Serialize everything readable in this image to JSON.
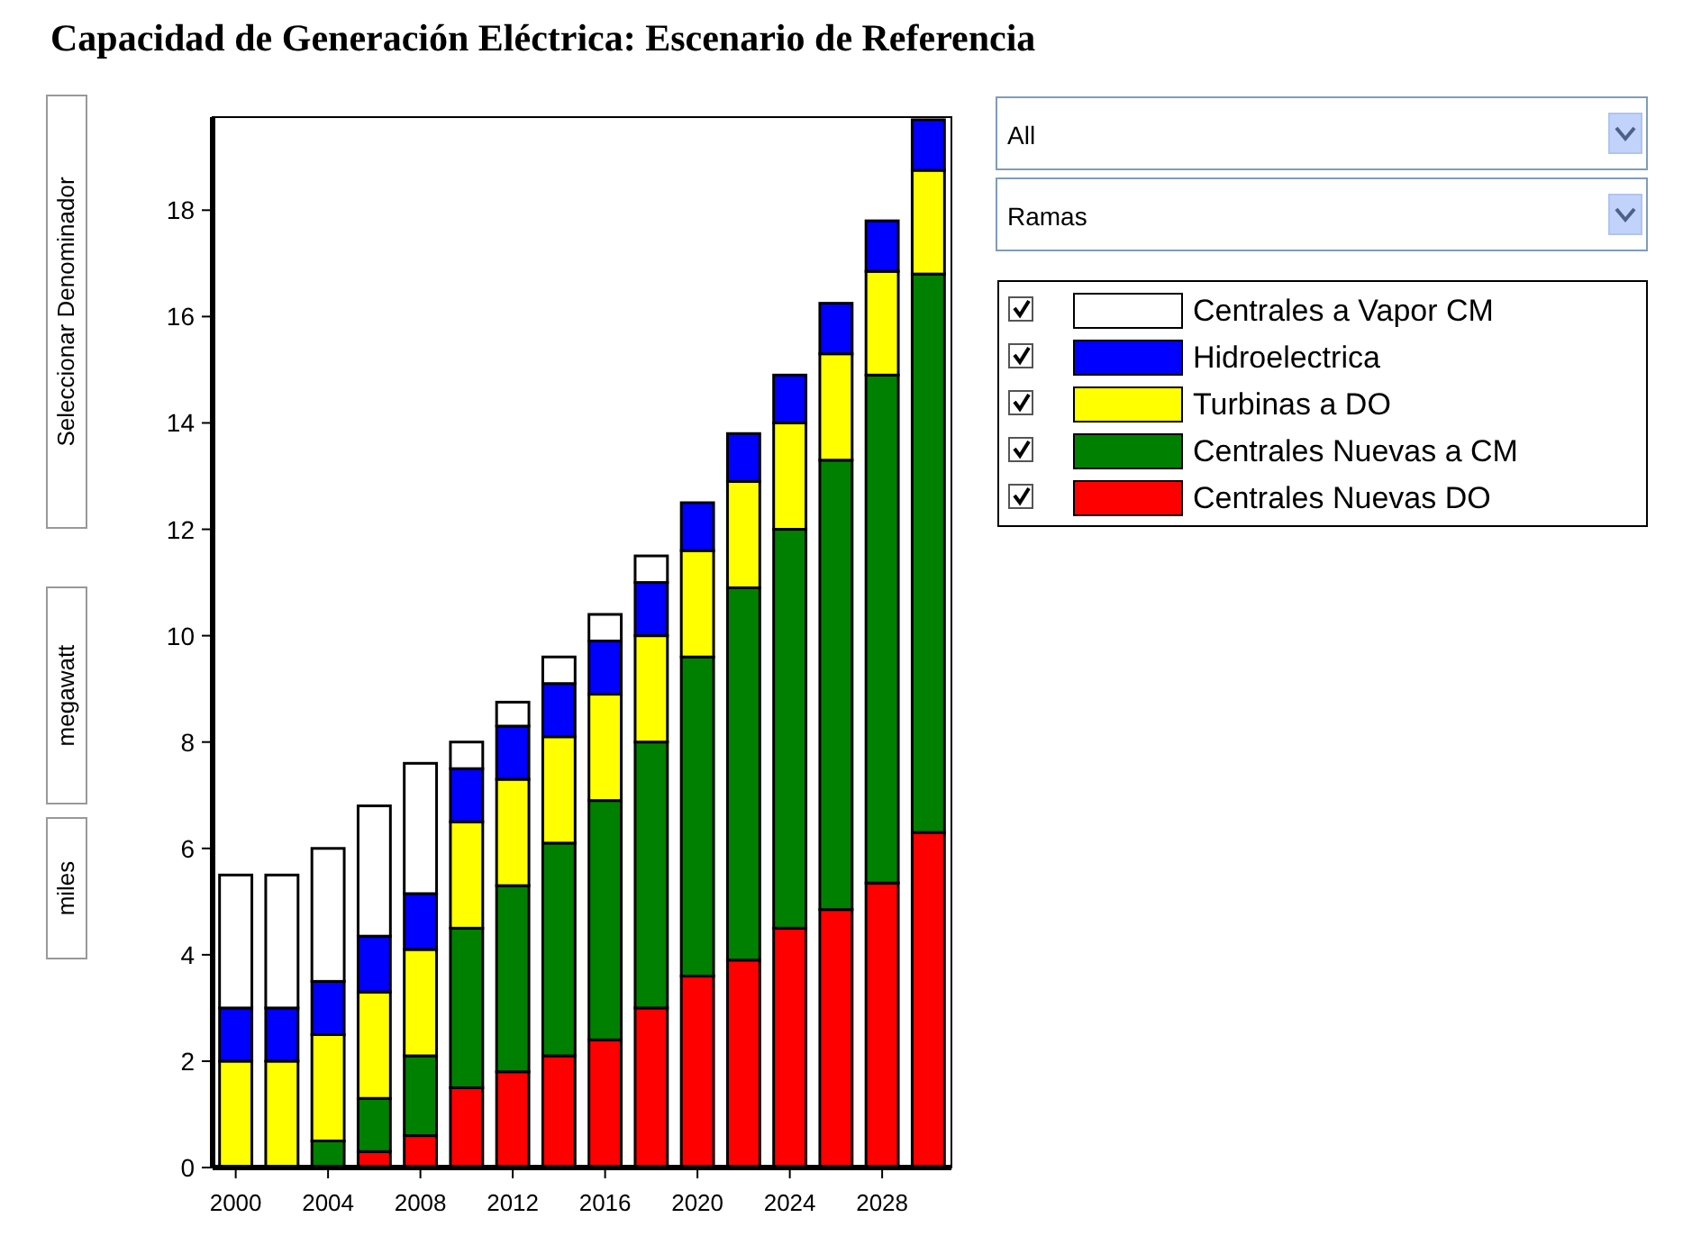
{
  "chart_data": {
    "type": "bar",
    "title": "Capacidad de Generación Eléctrica: Escenario de Referencia",
    "categories": [
      "2000",
      null,
      "2004",
      null,
      "2008",
      null,
      "2012",
      null,
      "2016",
      null,
      "2020",
      null,
      "2024",
      null,
      "2028",
      null
    ],
    "stacked": true,
    "series": [
      {
        "name": "Centrales Nuevas DO",
        "color": "#ff0000",
        "values": [
          0,
          0,
          0,
          0.3,
          0.6,
          1.5,
          1.8,
          2.1,
          2.4,
          3.0,
          3.6,
          3.9,
          4.5,
          4.85,
          5.35,
          6.3
        ]
      },
      {
        "name": "Centrales Nuevas a CM",
        "color": "#008000",
        "values": [
          0,
          0,
          0.5,
          1.0,
          1.5,
          3.0,
          3.5,
          4.0,
          4.5,
          5.0,
          6.0,
          7.0,
          7.5,
          8.45,
          9.55,
          10.5
        ]
      },
      {
        "name": "Turbinas a DO",
        "color": "#ffff00",
        "values": [
          2.0,
          2.0,
          2.0,
          2.0,
          2.0,
          2.0,
          2.0,
          2.0,
          2.0,
          2.0,
          2.0,
          2.0,
          2.0,
          2.0,
          1.95,
          1.95
        ]
      },
      {
        "name": "Hidroelectrica",
        "color": "#0000ff",
        "values": [
          1.0,
          1.0,
          1.0,
          1.05,
          1.05,
          1.0,
          1.0,
          1.0,
          1.0,
          1.0,
          0.9,
          0.9,
          0.9,
          0.95,
          0.95,
          0.95
        ]
      },
      {
        "name": "Centrales a Vapor CM",
        "color": "#ffffff",
        "values": [
          2.5,
          2.5,
          2.5,
          2.45,
          2.45,
          0.5,
          0.45,
          0.5,
          0.5,
          0.5,
          0,
          0,
          0,
          0,
          0,
          0
        ]
      }
    ],
    "ylim": [
      0,
      19.75
    ],
    "yticks": [
      0,
      2,
      4,
      6,
      8,
      10,
      12,
      14,
      16,
      18
    ],
    "legend": "top right",
    "annotations": [
      "Seleccionar Denominador",
      "megawatt",
      "miles",
      "All",
      "Ramas"
    ]
  }
}
